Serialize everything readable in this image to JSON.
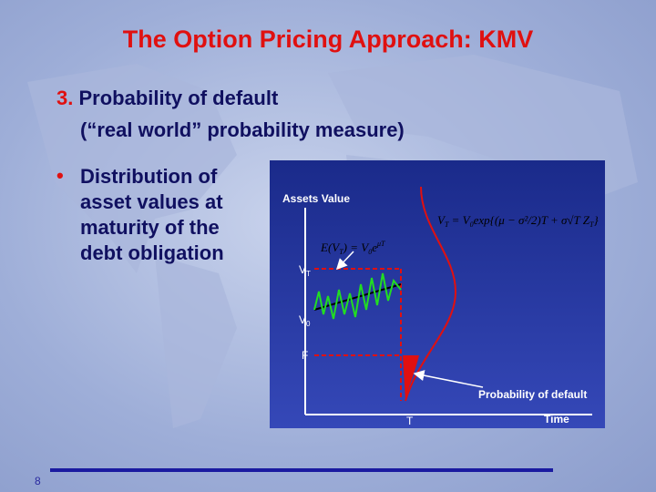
{
  "title": "The Option Pricing Approach: KMV",
  "heading": {
    "number": "3.",
    "line1": "Probability of default",
    "line2": "(“real world” probability measure)"
  },
  "bullet": {
    "marker": "•",
    "lines": [
      "Distribution of",
      "asset values at",
      "maturity of the",
      "debt obligation"
    ]
  },
  "diagram": {
    "y_axis_label": "Assets Value",
    "vt_label": "V",
    "vt_sub": "T",
    "v0_label": "V",
    "v0_sub": "0",
    "f_label": "F",
    "t_label": "T",
    "x_axis_label": "Time",
    "pd_label": "Probability of default",
    "expectation": "E(V",
    "expectation_rest": ") = V",
    "expectation_exp": "μT",
    "formula": "V",
    "formula_rest": " = V",
    "formula_exp": "exp{(μ − σ²/2)T + σ√T Z",
    "formula_end": "}"
  },
  "page_number": "8"
}
